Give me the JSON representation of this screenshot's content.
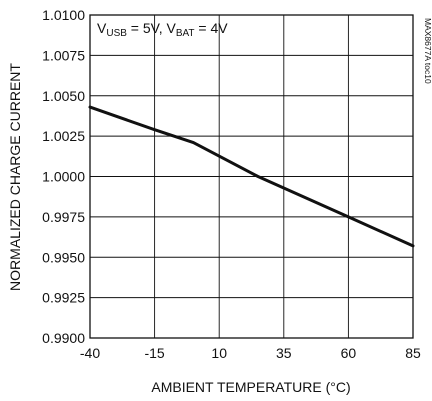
{
  "chart_data": {
    "type": "line",
    "title": "",
    "xlabel": "AMBIENT TEMPERATURE (°C)",
    "ylabel": "NORMALIZED CHARGE CURRENT",
    "xlim": [
      -40,
      85
    ],
    "ylim": [
      0.99,
      1.01
    ],
    "grid": true,
    "x_ticks": [
      -40,
      -15,
      10,
      35,
      60,
      85
    ],
    "x_tick_labels": [
      "-40",
      "-15",
      "10",
      "35",
      "60",
      "85"
    ],
    "y_ticks": [
      0.99,
      0.9925,
      0.995,
      0.9975,
      1.0,
      1.0025,
      1.005,
      1.0075,
      1.01
    ],
    "y_tick_labels": [
      "0.9900",
      "0.9925",
      "0.9950",
      "0.9975",
      "1.0000",
      "1.0025",
      "1.0050",
      "1.0075",
      "1.0100"
    ],
    "series": [
      {
        "x": [
          -40,
          -15,
          0,
          25,
          60,
          85
        ],
        "y": [
          1.0043,
          1.0029,
          1.0021,
          1.0,
          0.9975,
          0.9957
        ]
      }
    ],
    "annotation": {
      "v1": "V",
      "s1": "USB",
      "m1": " = 5V, V",
      "s2": "BAT",
      "m2": " = 4V"
    },
    "side_code": "MAX8677A toc10"
  }
}
